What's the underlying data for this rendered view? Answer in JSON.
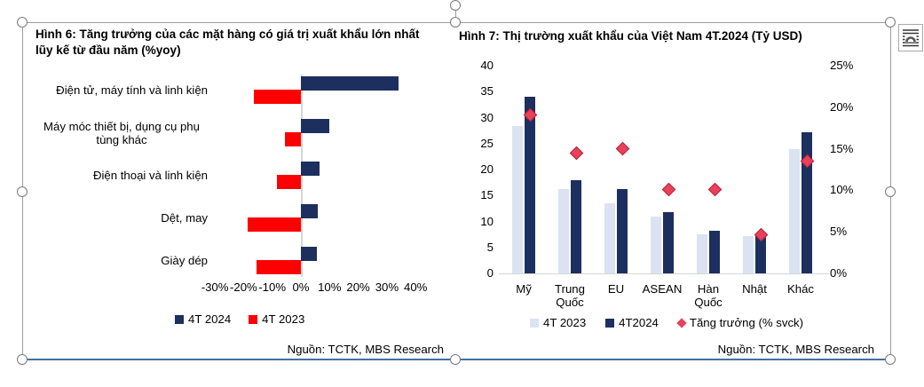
{
  "colors": {
    "navy": "#1c2f5e",
    "red": "#fd0002",
    "light_blue": "#dbe3f2",
    "diamond_fill": "#e8415a",
    "diamond_stroke": "#b5223a",
    "grid_gray": "#d6d6d6",
    "frame_gray": "#9c9c9c",
    "bottom_rule_blue": "#44719e"
  },
  "icons": {
    "layout_options": "layout-options-icon",
    "rotate_handle": "rotate-handle-icon"
  },
  "chart_data": [
    {
      "type": "bar",
      "orientation": "horizontal",
      "title": "Hình 6: Tăng trưởng của các mặt hàng có giá trị xuất khẩu lớn nhất lũy kế từ đầu năm (%yoy)",
      "categories": [
        "Điện tử, máy tính và linh kiện",
        "Máy móc thiết bị, dụng cụ phụ tùng khác",
        "Điện thoại và linh kiện",
        "Dệt, may",
        "Giày dép"
      ],
      "series": [
        {
          "name": "4T 2024",
          "color_key": "navy",
          "values": [
            34,
            10,
            6.5,
            6,
            5.5
          ]
        },
        {
          "name": "4T 2023",
          "color_key": "red",
          "values": [
            -16.5,
            -5.5,
            -8.5,
            -18.5,
            -15.5
          ]
        }
      ],
      "xlim": [
        -30,
        40
      ],
      "xticks": [
        {
          "value": -30,
          "label": "-30%"
        },
        {
          "value": -20,
          "label": "-20%"
        },
        {
          "value": -10,
          "label": "-10%"
        },
        {
          "value": 0,
          "label": "0%"
        },
        {
          "value": 10,
          "label": "10%"
        },
        {
          "value": 20,
          "label": "20%"
        },
        {
          "value": 30,
          "label": "30%"
        },
        {
          "value": 40,
          "label": "40%"
        }
      ],
      "legend_position": "bottom",
      "grid": false,
      "source": "Nguồn: TCTK, MBS Research"
    },
    {
      "type": "combo-bar-scatter",
      "title": "Hình 7: Thị trường xuất khẩu của Việt Nam 4T.2024 (Tỷ USD)",
      "categories": [
        "Mỹ",
        "Trung Quốc",
        "EU",
        "ASEAN",
        "Hàn Quốc",
        "Nhật",
        "Khác"
      ],
      "bar_series": [
        {
          "name": "4T 2023",
          "color_key": "light_blue",
          "values": [
            28.4,
            16.3,
            13.5,
            10.9,
            7.6,
            7.2,
            23.9
          ]
        },
        {
          "name": "4T2024",
          "color_key": "navy",
          "values": [
            34.0,
            17.9,
            16.2,
            11.8,
            8.2,
            7.5,
            27.1
          ]
        }
      ],
      "scatter_series": {
        "name": "Tăng trưởng (% svck)",
        "color_key": "diamond_fill",
        "axis": "right",
        "values": [
          19.1,
          14.5,
          15.0,
          10.1,
          10.1,
          4.6,
          13.5
        ]
      },
      "y_left_axis": {
        "min": 0,
        "max": 40,
        "ticks": [
          0,
          5,
          10,
          15,
          20,
          25,
          30,
          35,
          40
        ]
      },
      "y_right_axis": {
        "min": 0,
        "max": 25,
        "ticks": [
          "0%",
          "5%",
          "10%",
          "15%",
          "20%",
          "25%"
        ]
      },
      "legend_position": "bottom",
      "grid": false,
      "source": "Nguồn: TCTK, MBS Research"
    }
  ]
}
